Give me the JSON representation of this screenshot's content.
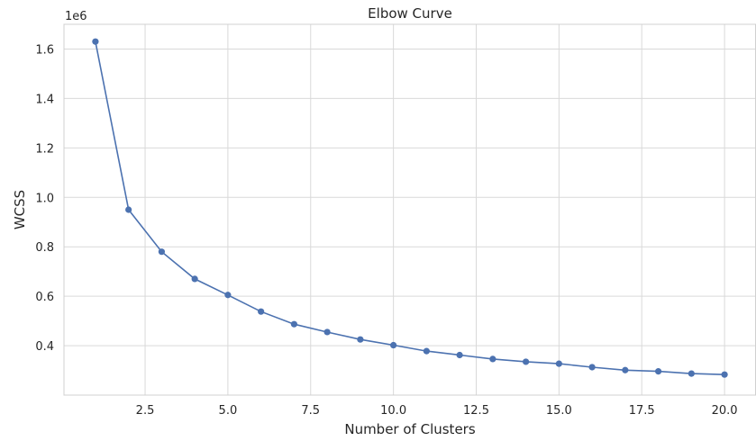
{
  "chart_data": {
    "type": "line",
    "title": "Elbow Curve",
    "xlabel": "Number of Clusters",
    "ylabel": "WCSS",
    "y_scale_label": "1e6",
    "xlim": [
      0.05,
      20.95
    ],
    "ylim": [
      0.2,
      1.7
    ],
    "x_ticks": [
      2.5,
      5.0,
      7.5,
      10.0,
      12.5,
      15.0,
      17.5,
      20.0
    ],
    "x_tick_labels": [
      "2.5",
      "5.0",
      "7.5",
      "10.0",
      "12.5",
      "15.0",
      "17.5",
      "20.0"
    ],
    "y_ticks": [
      0.4,
      0.6,
      0.8,
      1.0,
      1.2,
      1.4,
      1.6
    ],
    "y_tick_labels": [
      "0.4",
      "0.6",
      "0.8",
      "1.0",
      "1.2",
      "1.4",
      "1.6"
    ],
    "grid": true,
    "series": [
      {
        "color": "#4c72b0",
        "x": [
          1,
          2,
          3,
          4,
          5,
          6,
          7,
          8,
          9,
          10,
          11,
          12,
          13,
          14,
          15,
          16,
          17,
          18,
          19,
          20
        ],
        "y": [
          1.63,
          0.95,
          0.78,
          0.67,
          0.605,
          0.538,
          0.487,
          0.455,
          0.425,
          0.402,
          0.378,
          0.362,
          0.346,
          0.335,
          0.327,
          0.313,
          0.301,
          0.296,
          0.287,
          0.283
        ]
      }
    ]
  }
}
